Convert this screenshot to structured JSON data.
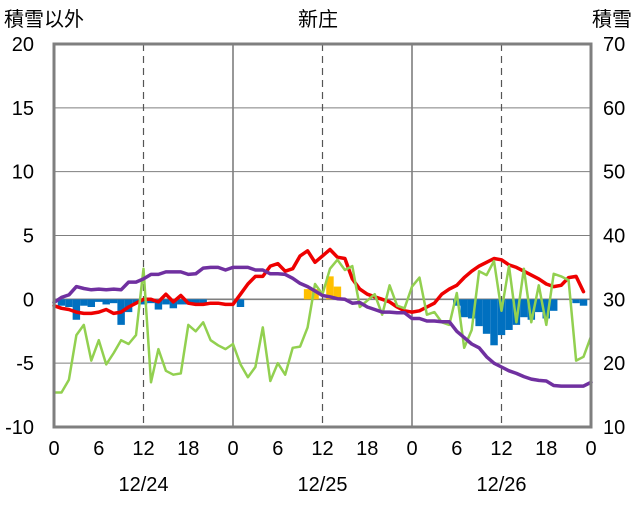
{
  "chart_data": {
    "type": "combo",
    "title": "新庄",
    "left_axis": {
      "label": "積雪以外",
      "min": -10,
      "max": 20,
      "ticks": [
        20,
        15,
        10,
        5,
        0,
        -5,
        -10
      ]
    },
    "right_axis": {
      "label": "積雪",
      "min": 10,
      "max": 70,
      "ticks": [
        70,
        60,
        50,
        40,
        30,
        20,
        10
      ]
    },
    "x_axis": {
      "min": 0,
      "max": 72,
      "tick_labels": [
        "0",
        "6",
        "12",
        "18",
        "0",
        "6",
        "12",
        "18",
        "0",
        "6",
        "12",
        "18",
        "0"
      ],
      "day_labels": [
        {
          "label": "12/24",
          "at": 12
        },
        {
          "label": "12/25",
          "at": 36
        },
        {
          "label": "12/26",
          "at": 60
        }
      ]
    },
    "colors": {
      "red": "#ee0000",
      "green": "#92d050",
      "purple": "#7030a0",
      "blue": "#0070c0",
      "yellow": "#ffc000",
      "frame": "#7f7f7f",
      "grid": "#7f7f7f"
    },
    "series": [
      {
        "axis": "left",
        "style": "line",
        "color": "red",
        "width": 3.5,
        "points": [
          [
            0,
            -0.5
          ],
          [
            1,
            -0.7
          ],
          [
            2,
            -0.8
          ],
          [
            3,
            -1.0
          ],
          [
            4,
            -1.1
          ],
          [
            5,
            -1.1
          ],
          [
            6,
            -1.0
          ],
          [
            7,
            -0.8
          ],
          [
            8,
            -1.1
          ],
          [
            9,
            -1.0
          ],
          [
            10,
            -0.6
          ],
          [
            11,
            -0.3
          ],
          [
            12,
            0.0
          ],
          [
            13,
            0.0
          ],
          [
            14,
            -0.2
          ],
          [
            15,
            0.4
          ],
          [
            16,
            -0.2
          ],
          [
            17,
            0.3
          ],
          [
            18,
            -0.3
          ],
          [
            19,
            -0.4
          ],
          [
            20,
            -0.4
          ],
          [
            21,
            -0.3
          ],
          [
            22,
            -0.3
          ],
          [
            23,
            -0.4
          ],
          [
            24,
            -0.4
          ],
          [
            25,
            0.4
          ],
          [
            26,
            1.2
          ],
          [
            27,
            1.8
          ],
          [
            28,
            1.8
          ],
          [
            29,
            2.6
          ],
          [
            30,
            2.8
          ],
          [
            31,
            2.2
          ],
          [
            32,
            2.4
          ],
          [
            33,
            3.4
          ],
          [
            34,
            3.8
          ],
          [
            35,
            2.9
          ],
          [
            36,
            3.4
          ],
          [
            37,
            3.9
          ],
          [
            38,
            3.3
          ],
          [
            39,
            3.2
          ],
          [
            40,
            1.6
          ],
          [
            41,
            0.8
          ],
          [
            42,
            0.4
          ],
          [
            43,
            0.2
          ],
          [
            44,
            0.0
          ],
          [
            45,
            -0.2
          ],
          [
            46,
            -0.6
          ],
          [
            47,
            -0.9
          ],
          [
            48,
            -1.0
          ],
          [
            49,
            -0.9
          ],
          [
            50,
            -0.6
          ],
          [
            51,
            -0.3
          ],
          [
            52,
            0.4
          ],
          [
            53,
            0.8
          ],
          [
            54,
            1.1
          ],
          [
            55,
            1.7
          ],
          [
            56,
            2.2
          ],
          [
            57,
            2.6
          ],
          [
            58,
            2.9
          ],
          [
            59,
            3.2
          ],
          [
            60,
            3.1
          ],
          [
            61,
            2.7
          ],
          [
            62,
            2.5
          ],
          [
            63,
            2.2
          ],
          [
            64,
            1.9
          ],
          [
            65,
            1.6
          ],
          [
            66,
            1.2
          ],
          [
            67,
            1.0
          ],
          [
            68,
            1.1
          ],
          [
            69,
            1.7
          ],
          [
            70,
            1.8
          ],
          [
            71,
            0.6
          ]
        ]
      },
      {
        "axis": "left",
        "style": "line",
        "color": "green",
        "width": 2.5,
        "points": [
          [
            0,
            -7.3
          ],
          [
            1,
            -7.3
          ],
          [
            2,
            -6.3
          ],
          [
            3,
            -2.8
          ],
          [
            4,
            -2.0
          ],
          [
            5,
            -4.8
          ],
          [
            6,
            -3.2
          ],
          [
            7,
            -5.1
          ],
          [
            8,
            -4.2
          ],
          [
            9,
            -3.2
          ],
          [
            10,
            -3.5
          ],
          [
            11,
            -2.8
          ],
          [
            12,
            2.4
          ],
          [
            13,
            -6.5
          ],
          [
            14,
            -3.9
          ],
          [
            15,
            -5.6
          ],
          [
            16,
            -5.9
          ],
          [
            17,
            -5.8
          ],
          [
            18,
            -2.0
          ],
          [
            19,
            -2.5
          ],
          [
            20,
            -1.8
          ],
          [
            21,
            -3.2
          ],
          [
            22,
            -3.6
          ],
          [
            23,
            -3.9
          ],
          [
            24,
            -3.5
          ],
          [
            25,
            -5.1
          ],
          [
            26,
            -6.1
          ],
          [
            27,
            -5.3
          ],
          [
            28,
            -2.2
          ],
          [
            29,
            -6.4
          ],
          [
            30,
            -5.0
          ],
          [
            31,
            -5.9
          ],
          [
            32,
            -3.8
          ],
          [
            33,
            -3.7
          ],
          [
            34,
            -2.2
          ],
          [
            35,
            1.2
          ],
          [
            36,
            0.4
          ],
          [
            37,
            2.4
          ],
          [
            38,
            3.1
          ],
          [
            39,
            2.3
          ],
          [
            40,
            2.6
          ],
          [
            41,
            -0.6
          ],
          [
            42,
            -0.1
          ],
          [
            43,
            0.4
          ],
          [
            44,
            -1.2
          ],
          [
            45,
            1.1
          ],
          [
            46,
            -0.5
          ],
          [
            47,
            -0.7
          ],
          [
            48,
            1.0
          ],
          [
            49,
            1.7
          ],
          [
            50,
            -1.2
          ],
          [
            51,
            -1.0
          ],
          [
            52,
            -1.8
          ],
          [
            53,
            -2.0
          ],
          [
            54,
            0.5
          ],
          [
            55,
            -3.8
          ],
          [
            56,
            -2.4
          ],
          [
            57,
            2.2
          ],
          [
            58,
            1.9
          ],
          [
            59,
            3.0
          ],
          [
            60,
            -0.9
          ],
          [
            61,
            2.6
          ],
          [
            62,
            -1.8
          ],
          [
            63,
            2.4
          ],
          [
            64,
            -1.8
          ],
          [
            65,
            1.1
          ],
          [
            66,
            -2.0
          ],
          [
            67,
            2.0
          ],
          [
            68,
            1.8
          ],
          [
            69,
            1.5
          ],
          [
            70,
            -4.8
          ],
          [
            71,
            -4.5
          ],
          [
            72,
            -2.9
          ]
        ]
      },
      {
        "axis": "right",
        "style": "line",
        "color": "purple",
        "width": 3.5,
        "points": [
          [
            0,
            29.5
          ],
          [
            1,
            30.3
          ],
          [
            2,
            30.7
          ],
          [
            3,
            32.0
          ],
          [
            4,
            31.7
          ],
          [
            5,
            31.5
          ],
          [
            6,
            31.6
          ],
          [
            7,
            31.5
          ],
          [
            8,
            31.6
          ],
          [
            9,
            31.5
          ],
          [
            10,
            32.7
          ],
          [
            11,
            32.7
          ],
          [
            12,
            33.2
          ],
          [
            13,
            33.9
          ],
          [
            14,
            33.9
          ],
          [
            15,
            34.3
          ],
          [
            16,
            34.3
          ],
          [
            17,
            34.3
          ],
          [
            18,
            33.9
          ],
          [
            19,
            34.0
          ],
          [
            20,
            34.9
          ],
          [
            21,
            35.0
          ],
          [
            22,
            35.0
          ],
          [
            23,
            34.6
          ],
          [
            24,
            35.0
          ],
          [
            25,
            35.0
          ],
          [
            26,
            35.0
          ],
          [
            27,
            34.6
          ],
          [
            28,
            34.6
          ],
          [
            29,
            34.0
          ],
          [
            30,
            34.0
          ],
          [
            31,
            33.9
          ],
          [
            32,
            33.3
          ],
          [
            33,
            32.5
          ],
          [
            34,
            32.0
          ],
          [
            35,
            31.3
          ],
          [
            36,
            30.6
          ],
          [
            37,
            30.4
          ],
          [
            38,
            30.1
          ],
          [
            39,
            30.0
          ],
          [
            40,
            29.4
          ],
          [
            41,
            29.5
          ],
          [
            42,
            28.8
          ],
          [
            43,
            28.4
          ],
          [
            44,
            28.0
          ],
          [
            45,
            28.0
          ],
          [
            46,
            27.9
          ],
          [
            47,
            27.9
          ],
          [
            48,
            27.0
          ],
          [
            49,
            27.0
          ],
          [
            50,
            26.6
          ],
          [
            51,
            26.6
          ],
          [
            52,
            26.5
          ],
          [
            53,
            26.5
          ],
          [
            54,
            25.0
          ],
          [
            55,
            24.0
          ],
          [
            56,
            23.0
          ],
          [
            57,
            22.4
          ],
          [
            58,
            21.0
          ],
          [
            59,
            20.0
          ],
          [
            60,
            19.4
          ],
          [
            61,
            18.8
          ],
          [
            62,
            18.4
          ],
          [
            63,
            17.9
          ],
          [
            64,
            17.5
          ],
          [
            65,
            17.3
          ],
          [
            66,
            17.2
          ],
          [
            67,
            16.5
          ],
          [
            68,
            16.4
          ],
          [
            69,
            16.4
          ],
          [
            70,
            16.4
          ],
          [
            71,
            16.4
          ],
          [
            72,
            17.0
          ]
        ]
      }
    ],
    "bars": [
      {
        "axis": "left",
        "color": "blue",
        "values": [
          [
            1,
            -0.5
          ],
          [
            2,
            -0.6
          ],
          [
            3,
            -1.6
          ],
          [
            4,
            -0.5
          ],
          [
            5,
            -0.6
          ],
          [
            6,
            -0.2
          ],
          [
            7,
            -0.4
          ],
          [
            8,
            -0.3
          ],
          [
            9,
            -2.0
          ],
          [
            10,
            -1.0
          ],
          [
            11,
            -0.3
          ],
          [
            12,
            -0.4
          ],
          [
            13,
            -0.3
          ],
          [
            14,
            -0.8
          ],
          [
            15,
            -0.4
          ],
          [
            16,
            -0.7
          ],
          [
            17,
            -0.4
          ],
          [
            18,
            -0.4
          ],
          [
            19,
            -0.3
          ],
          [
            20,
            -0.3
          ],
          [
            25,
            -0.6
          ],
          [
            54,
            -0.5
          ],
          [
            55,
            -1.4
          ],
          [
            56,
            -1.5
          ],
          [
            57,
            -2.1
          ],
          [
            58,
            -2.7
          ],
          [
            59,
            -3.6
          ],
          [
            60,
            -2.8
          ],
          [
            61,
            -2.4
          ],
          [
            62,
            -2.0
          ],
          [
            63,
            -1.4
          ],
          [
            64,
            -1.6
          ],
          [
            65,
            -1.0
          ],
          [
            66,
            -1.5
          ],
          [
            67,
            -0.9
          ],
          [
            70,
            -0.3
          ],
          [
            71,
            -0.5
          ]
        ]
      },
      {
        "axis": "left",
        "color": "yellow",
        "values": [
          [
            34,
            0.8
          ],
          [
            35,
            0.8
          ],
          [
            37,
            1.8
          ],
          [
            38,
            1.0
          ]
        ]
      }
    ]
  }
}
